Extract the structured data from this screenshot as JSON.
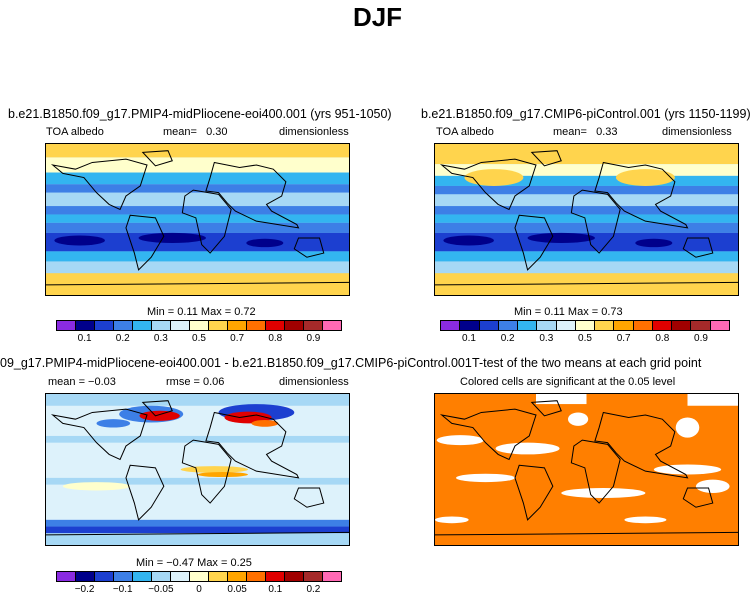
{
  "page_title": "DJF",
  "panels": {
    "top_left": {
      "title": "b.e21.B1850.f09_g17.PMIP4-midPliocene-eoi400.001 (yrs 951-1050)",
      "variable": "TOA albedo",
      "stat_label": "mean=",
      "stat_value": "0.30",
      "units": "dimensionless",
      "minmax": "Min =    0.11  Max =    0.72"
    },
    "top_right": {
      "title": "b.e21.B1850.f09_g17.CMIP6-piControl.001 (yrs 1150-1199)",
      "variable": "TOA albedo",
      "stat_label": "mean=",
      "stat_value": "0.33",
      "units": "dimensionless",
      "minmax": "Min =    0.11  Max =    0.73"
    },
    "bottom_left": {
      "title": "09_g17.PMIP4-midPliocene-eoi400.001 - b.e21.B1850.f09_g17.CMIP6-piControl.001",
      "mean_text": "mean =  −0.03",
      "rmse_text": "rmse =    0.06",
      "units": "dimensionless",
      "minmax": "Min =  −0.47  Max =    0.25"
    },
    "bottom_right": {
      "title": "T-test of the two means at each grid point",
      "subtitle": "Colored cells are significant at the 0.05 level"
    }
  },
  "colorbars": {
    "absolute": {
      "colors": [
        "#8a2be2",
        "#00008b",
        "#1c3fd0",
        "#3d7fe6",
        "#33b5f0",
        "#a6d8f5",
        "#ddf2fb",
        "#ffffcc",
        "#ffd44d",
        "#ffa500",
        "#ff7000",
        "#e00000",
        "#a00000",
        "#a52a2a",
        "#ff69b4"
      ],
      "labels": [
        "0.1",
        "0.2",
        "0.3",
        "0.5",
        "0.7",
        "0.8",
        "0.9"
      ]
    },
    "difference": {
      "colors": [
        "#8a2be2",
        "#00008b",
        "#1c3fd0",
        "#3d7fe6",
        "#33b5f0",
        "#a6d8f5",
        "#ddf2fb",
        "#ffffcc",
        "#ffd44d",
        "#ffa500",
        "#ff7000",
        "#e00000",
        "#a00000",
        "#a52a2a",
        "#ff69b4"
      ],
      "labels": [
        "−0.2",
        "−0.1",
        "−0.05",
        "0",
        "0.05",
        "0.1",
        "0.2"
      ]
    }
  },
  "colors": {
    "significant": "#ff7f00",
    "not_significant": "#ffffff",
    "land_outline": "#000000"
  }
}
